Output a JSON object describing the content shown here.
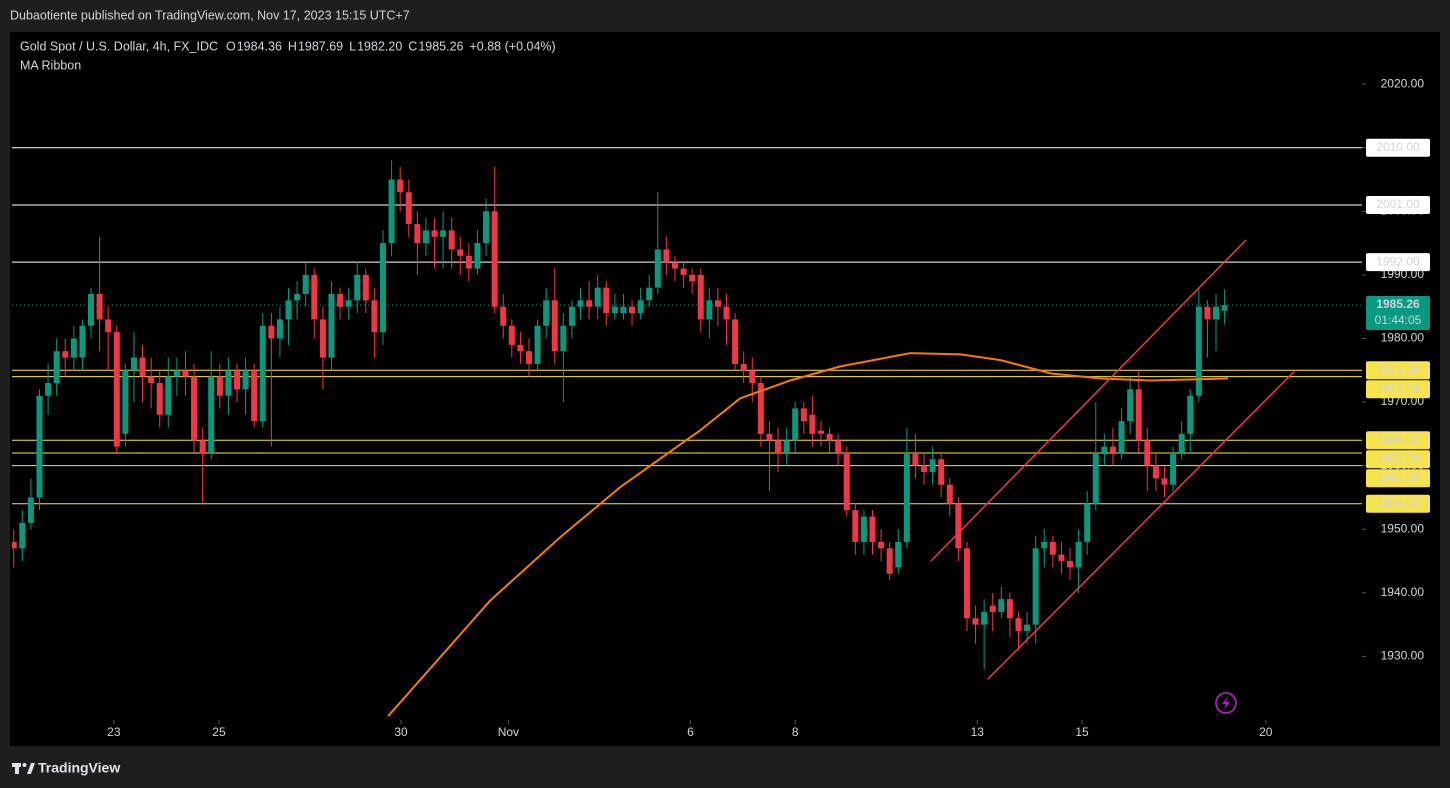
{
  "header": {
    "publisher": "Dubaotiente published on TradingView.com, Nov 17, 2023 15:15 UTC+7",
    "symbol": "Gold Spot / U.S. Dollar, 4h, FX_IDC",
    "ohlc": [
      {
        "key": "O",
        "value": "1984.36"
      },
      {
        "key": "H",
        "value": "1987.69"
      },
      {
        "key": "L",
        "value": "1982.20"
      },
      {
        "key": "C",
        "value": "1985.26"
      }
    ],
    "change": "+0.88 (+0.04%)"
  },
  "footer": {
    "brand": "TradingView"
  },
  "chart_data": {
    "type": "candlestick",
    "up_color": "#089981",
    "down_color": "#f23645",
    "open": [
      1948,
      1947,
      1951,
      1955,
      1971,
      1973,
      1978,
      1977,
      1977,
      1982,
      1987,
      1983,
      1981,
      1965,
      1975,
      1977,
      1974,
      1973,
      1968,
      1974,
      1975,
      1974,
      1964,
      1962,
      1974,
      1971,
      1975,
      1972,
      1975,
      1967,
      1982,
      1980,
      1983,
      1986,
      1987,
      1990,
      1983,
      1977,
      1987,
      1985,
      1986,
      1990,
      1986,
      1981,
      1995,
      2005,
      2003,
      1998,
      1995,
      1997,
      1996,
      1997,
      1994,
      1993,
      1991,
      1995,
      2000,
      1985,
      1982,
      1979,
      1978,
      1976,
      1982,
      1986,
      1978,
      1982,
      1985,
      1986,
      1985,
      1988,
      1984,
      1984,
      1985,
      1984,
      1986,
      1988,
      1994,
      1992,
      1991,
      1990,
      1990,
      1983,
      1986,
      1985,
      1983,
      1976,
      1975,
      1973,
      1965,
      1964,
      1962,
      1964,
      1969,
      1968,
      1965.5,
      1965,
      1964,
      1962,
      1953,
      1948,
      1952,
      1948,
      1947,
      1944,
      1948,
      1962,
      1960,
      1959,
      1961,
      1957,
      1954,
      1947,
      1936,
      1935,
      1938,
      1937,
      1939,
      1936,
      1934,
      1935,
      1947,
      1948,
      1946,
      1945,
      1944,
      1948,
      1954,
      1962,
      1963,
      1962,
      1967,
      1972,
      1964,
      1960,
      1958,
      1957,
      1962,
      1965,
      1971,
      1985,
      1983,
      1984.36
    ],
    "high": [
      1950,
      1953,
      1958,
      1972,
      1976,
      1980,
      1980,
      1982,
      1983,
      1988,
      1996,
      1985,
      1982,
      1976,
      1981,
      1979,
      1977,
      1975,
      1977,
      1977,
      1978,
      1976,
      1966,
      1978,
      1976,
      1977,
      1976,
      1977,
      1976,
      1984,
      1984,
      1985,
      1988,
      1989,
      1992,
      1991,
      1985,
      1989,
      1988,
      1988,
      1992,
      1991,
      1988,
      1997,
      2008,
      2007,
      2005,
      2000,
      1999,
      1999,
      2000,
      1999,
      1996,
      1995,
      1997,
      2002,
      2007,
      1987,
      1983,
      1981,
      1980,
      1983,
      1988,
      1991,
      1984,
      1986,
      1988,
      1989,
      1990,
      1989,
      1987,
      1987,
      1986,
      1988,
      1990,
      2003,
      1996,
      1993,
      1992,
      1991,
      1991,
      1988,
      1988,
      1987,
      1984,
      1978,
      1977,
      1974,
      1967,
      1966,
      1966,
      1970,
      1970,
      1971,
      1967,
      1966,
      1965,
      1963,
      1954,
      1953,
      1953,
      1950,
      1948,
      1950,
      1966,
      1965,
      1962,
      1963,
      1962,
      1958,
      1955,
      1948,
      1938,
      1939,
      1940,
      1941,
      1940,
      1937,
      1937,
      1949,
      1950,
      1949,
      1948,
      1947,
      1950,
      1956,
      1970,
      1965,
      1966,
      1969,
      1974,
      1975,
      1966,
      1962,
      1960,
      1963,
      1967,
      1972,
      1988,
      1986,
      1987,
      1987.69
    ],
    "low": [
      1944,
      1945,
      1950,
      1953,
      1968,
      1971,
      1974,
      1975,
      1975,
      1980,
      1978,
      1975,
      1962,
      1963,
      1970,
      1970,
      1969,
      1966,
      1966,
      1971,
      1971,
      1962,
      1954,
      1961,
      1969,
      1968,
      1970,
      1968,
      1966,
      1966,
      1963,
      1977,
      1979,
      1983,
      1985,
      1980,
      1972,
      1975,
      1983,
      1983,
      1984,
      1984,
      1977,
      1979,
      1993,
      2000,
      1996,
      1990,
      1993,
      1991,
      1991,
      1991,
      1990,
      1989,
      1990,
      1993,
      1984,
      1980,
      1977,
      1976,
      1974,
      1975,
      1980,
      1976,
      1970,
      1980,
      1983,
      1983,
      1983,
      1982,
      1983,
      1983,
      1982,
      1983,
      1985,
      1987,
      1990,
      1989,
      1988,
      1987,
      1981,
      1980,
      1982,
      1979,
      1975,
      1973,
      1970,
      1963,
      1956,
      1959,
      1960,
      1962,
      1965,
      1963,
      1963,
      1962,
      1960,
      1952,
      1946,
      1946,
      1946,
      1945,
      1942,
      1943,
      1947,
      1958,
      1957,
      1957,
      1955,
      1952,
      1945,
      1934,
      1932,
      1928,
      1934,
      1936,
      1933,
      1931,
      1932,
      1932,
      1944,
      1944,
      1943,
      1942,
      1940,
      1946,
      1953,
      1960,
      1960,
      1961,
      1965,
      1962,
      1956,
      1956,
      1955,
      1956,
      1961,
      1962,
      1970,
      1977,
      1978,
      1982.2
    ],
    "close": [
      1947,
      1951,
      1955,
      1971,
      1973,
      1978,
      1977,
      1980,
      1982,
      1987,
      1983,
      1981,
      1963,
      1975,
      1977,
      1974,
      1973,
      1968,
      1974,
      1975,
      1974,
      1964,
      1962,
      1974,
      1971,
      1975,
      1972,
      1975,
      1967,
      1982,
      1980,
      1983,
      1986,
      1987,
      1990,
      1983,
      1977,
      1987,
      1985,
      1986,
      1990,
      1986,
      1981,
      1995,
      2005,
      2003,
      1998,
      1995,
      1997,
      1996,
      1997,
      1994,
      1993,
      1991,
      1995,
      2000,
      1985,
      1982,
      1979,
      1978,
      1976,
      1982,
      1986,
      1978,
      1982,
      1985,
      1986,
      1985,
      1988,
      1984,
      1985,
      1985,
      1984,
      1986,
      1988,
      1994,
      1992,
      1991,
      1990,
      1989,
      1983,
      1986,
      1985,
      1983,
      1976,
      1975,
      1973,
      1965,
      1964,
      1962,
      1964,
      1969,
      1967,
      1965,
      1965,
      1964,
      1962,
      1953,
      1948,
      1952,
      1948,
      1947,
      1943,
      1948,
      1962,
      1960,
      1959,
      1961,
      1957,
      1954,
      1947,
      1936,
      1935,
      1937,
      1937,
      1939,
      1936,
      1934,
      1935,
      1947,
      1948,
      1946,
      1945,
      1944,
      1948,
      1954,
      1962,
      1963,
      1962,
      1967,
      1972,
      1964,
      1960,
      1958,
      1957,
      1962,
      1965,
      1971,
      1985,
      1983,
      1985,
      1985.26
    ],
    "xlim": [
      -0.2,
      157
    ],
    "xticks": [
      {
        "value": 11.66,
        "label": "23"
      },
      {
        "value": 23.9,
        "label": "25"
      },
      {
        "value": 45.1,
        "label": "30"
      },
      {
        "value": 57.6,
        "label": "Nov"
      },
      {
        "value": 78.8,
        "label": "6"
      },
      {
        "value": 91.0,
        "label": "8"
      },
      {
        "value": 112.2,
        "label": "13"
      },
      {
        "value": 124.4,
        "label": "15"
      },
      {
        "value": 145.8,
        "label": "20"
      }
    ],
    "ylim": [
      1920,
      2028.2
    ],
    "yticks": [
      {
        "value": 1930,
        "label": "1930.00"
      },
      {
        "value": 1940,
        "label": "1940.00"
      },
      {
        "value": 1950,
        "label": "1950.00"
      },
      {
        "value": 1960,
        "label": "1960.00"
      },
      {
        "value": 1970,
        "label": "1970.00"
      },
      {
        "value": 1980,
        "label": "1980.00"
      },
      {
        "value": 1990,
        "label": "1990.00"
      },
      {
        "value": 2000,
        "label": "2000.00"
      },
      {
        "value": 2010,
        "label": "2010.00"
      },
      {
        "value": 2020,
        "label": "2020.00"
      }
    ],
    "series": [
      {
        "name": "MA Ribbon",
        "color": "#f57c00",
        "x": [
          43.6,
          55.5,
          63.6,
          70.6,
          80,
          84.6,
          90.4,
          96.2,
          104.4,
          110.3,
          114.9,
          120.8,
          126.6,
          132.4,
          141.4
        ],
        "values": [
          1920.6,
          1938.8,
          1948.7,
          1956.6,
          1965.6,
          1970.6,
          1973.4,
          1975.6,
          1977.7,
          1977.5,
          1976.6,
          1974.5,
          1973.7,
          1973.4,
          1973.7
        ]
      }
    ],
    "trend_lines": [
      {
        "color": "#f23645",
        "x": [
          106.8,
          143.5
        ],
        "values": [
          1945.0,
          1995.5
        ]
      },
      {
        "color": "#f23645",
        "x": [
          113.4,
          149.1
        ],
        "values": [
          1926.4,
          1974.8
        ]
      }
    ],
    "levels": [
      {
        "value": 2010,
        "label": "2010.00",
        "color": "#ffffff"
      },
      {
        "value": 2001,
        "label": "2001.00",
        "color": "#ffffff"
      },
      {
        "value": 1992,
        "label": "1992.00",
        "color": "#ffffff"
      },
      {
        "value": 1975,
        "label": "1975.00",
        "color": "#f7e34a"
      },
      {
        "value": 1974,
        "label": "1974.00",
        "color": "#f7e34a"
      },
      {
        "value": 1964,
        "label": "1964.00",
        "color": "#f7e34a"
      },
      {
        "value": 1962,
        "label": "1962.00",
        "color": "#f7e34a"
      },
      {
        "value": 1960,
        "label": "1960.00",
        "color": "#f7e34a"
      },
      {
        "value": 1954,
        "label": "1954.00",
        "color": "#f7e34a"
      }
    ],
    "last_price": {
      "value": 1985.26,
      "label": "1985.26",
      "countdown": "01:44:05",
      "color": "#089981"
    }
  }
}
